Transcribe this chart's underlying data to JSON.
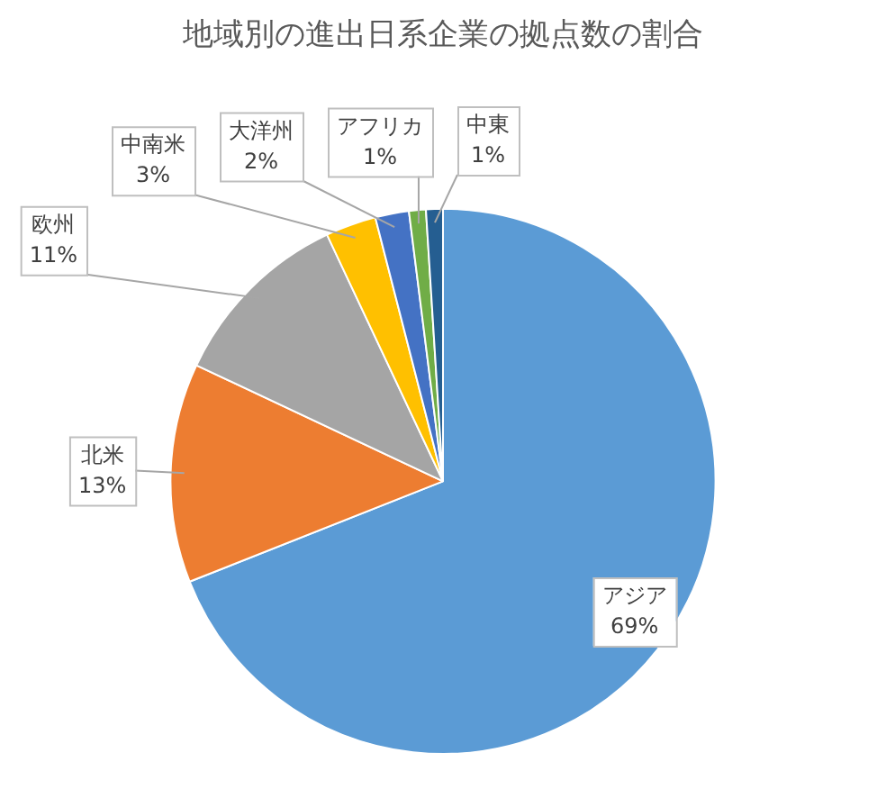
{
  "chart_data": {
    "type": "pie",
    "title": "地域別の進出日系企業の拠点数の割合",
    "categories": [
      "アジア",
      "北米",
      "欧州",
      "中南米",
      "大洋州",
      "アフリカ",
      "中東"
    ],
    "values": [
      69,
      13,
      11,
      3,
      2,
      1,
      1
    ],
    "colors": [
      "#5b9bd5",
      "#ed7d31",
      "#a5a5a5",
      "#ffc000",
      "#4472c4",
      "#70ad47",
      "#255e91"
    ],
    "value_labels": [
      "69%",
      "13%",
      "11%",
      "3%",
      "2%",
      "1%",
      "1%"
    ],
    "legend": false
  }
}
